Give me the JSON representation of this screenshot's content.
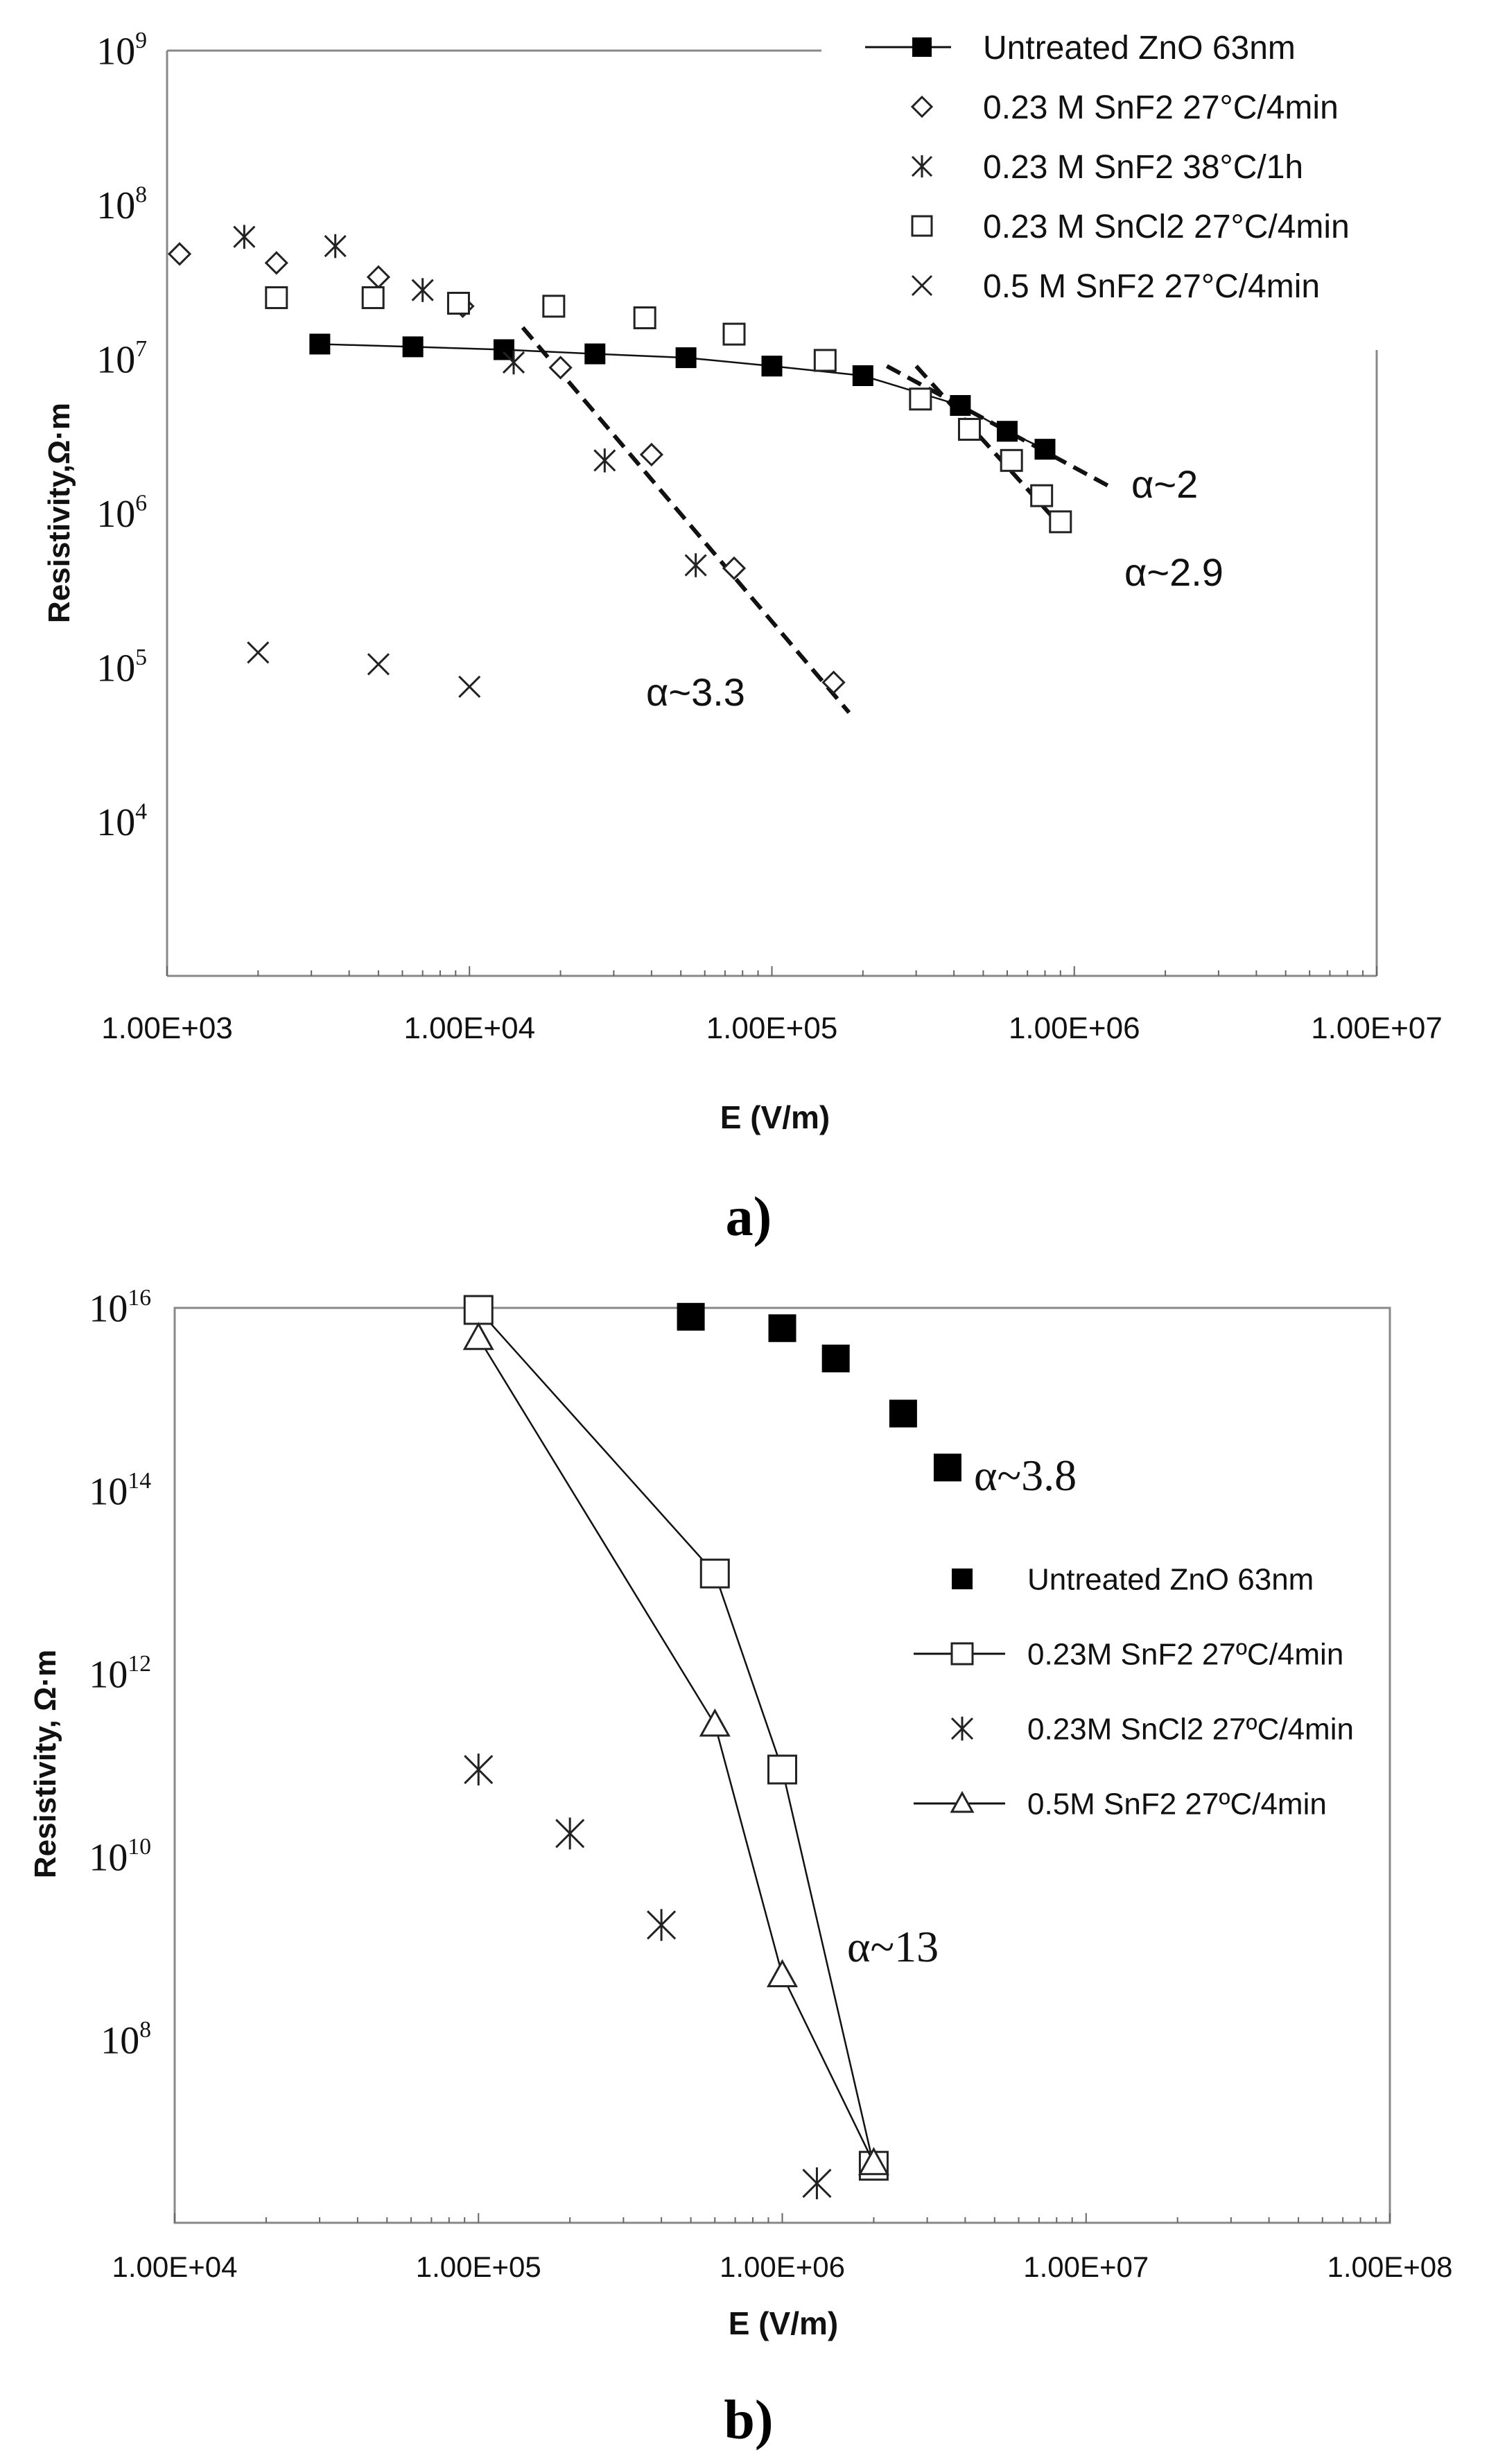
{
  "chart_data": [
    {
      "panel": "a)",
      "type": "scatter",
      "xscale": "log",
      "yscale": "log",
      "xlim": [
        1000,
        10000000
      ],
      "ylim": [
        1000,
        1000000000
      ],
      "xlabel": "E (V/m)",
      "ylabel": "Resistivity,Ω·m",
      "x_tick_labels": [
        "1.00E+03",
        "1.00E+04",
        "1.00E+05",
        "1.00E+06",
        "1.00E+07"
      ],
      "y_tick_bases": [
        "10",
        "10",
        "10",
        "10",
        "10",
        "10"
      ],
      "y_tick_exps": [
        "4",
        "5",
        "6",
        "7",
        "8",
        "9"
      ],
      "legend_placement": "top-right",
      "series": [
        {
          "name": "Untreated ZnO 63nm",
          "marker": "filled-square",
          "line": "solid",
          "x": [
            3200,
            6500,
            13000,
            26000,
            52000,
            100000,
            200000,
            420000,
            600000,
            800000
          ],
          "y": [
            12500000,
            12000000,
            11500000,
            10800000,
            10200000,
            9000000,
            7800000,
            5000000,
            3400000,
            2600000
          ]
        },
        {
          "name": "0.23 M SnF2 27°C/4min",
          "marker": "open-diamond",
          "line": "none",
          "x": [
            1100,
            2300,
            5000,
            9500,
            20000,
            40000,
            75000,
            160000
          ],
          "y": [
            48000000,
            42000000,
            34000000,
            22000000,
            8800000,
            2400000,
            440000,
            80000
          ]
        },
        {
          "name": "0.23 M SnF2 38°C/1h",
          "marker": "asterisk",
          "line": "none",
          "x": [
            1800,
            3600,
            7000,
            14000,
            28000,
            56000
          ],
          "y": [
            62000000,
            54000000,
            28000000,
            9500000,
            2200000,
            460000
          ]
        },
        {
          "name": "0.23 M SnCl2 27°C/4min",
          "marker": "open-square",
          "line": "none",
          "x": [
            2300,
            4800,
            9200,
            19000,
            38000,
            75000,
            150000,
            310000,
            450000,
            620000,
            780000,
            900000
          ],
          "y": [
            25000000,
            25000000,
            23000000,
            22000000,
            18500000,
            14500000,
            9800000,
            5500000,
            3500000,
            2200000,
            1300000,
            880000
          ]
        },
        {
          "name": "0.5 M SnF2 27°C/4min",
          "marker": "x-cross",
          "line": "none",
          "x": [
            2000,
            5000,
            10000
          ],
          "y": [
            125000,
            105000,
            75000
          ]
        }
      ],
      "fits": [
        {
          "label": "α~2",
          "x": [
            240000,
            1300000
          ],
          "y": [
            9000000,
            1500000
          ]
        },
        {
          "label": "α~2.9",
          "x": [
            300000,
            900000
          ],
          "y": [
            9000000,
            830000
          ]
        },
        {
          "label": "α~3.3",
          "x": [
            15000,
            180000
          ],
          "y": [
            16000000,
            51000
          ]
        }
      ]
    },
    {
      "panel": "b)",
      "type": "scatter",
      "xscale": "log",
      "yscale": "log",
      "xlim": [
        10000,
        100000000
      ],
      "ylim": [
        1000000,
        10000000000000000
      ],
      "xlabel": "E (V/m)",
      "ylabel": "Resistivity, Ω·m",
      "x_tick_labels": [
        "1.00E+04",
        "1.00E+05",
        "1.00E+06",
        "1.00E+07",
        "1.00E+08"
      ],
      "y_tick_bases": [
        "10",
        "10",
        "10",
        "10",
        "10"
      ],
      "y_tick_exps": [
        "8",
        "10",
        "12",
        "14",
        "16"
      ],
      "legend_placement": "right",
      "series": [
        {
          "name": "Untreated ZnO 63nm",
          "marker": "filled-square",
          "line": "none",
          "x": [
            500000,
            1000000,
            1500000,
            2500000,
            3500000
          ],
          "y": [
            8000000000000000,
            6000000000000000,
            2800000000000000,
            700000000000000,
            180000000000000
          ]
        },
        {
          "name": "0.23M SnF2 27ºC/4min",
          "marker": "open-square",
          "line": "solid",
          "x": [
            100000,
            600000,
            1000000,
            2000000
          ],
          "y": [
            9500000000000000,
            12500000000000,
            90000000000,
            4200000
          ]
        },
        {
          "name": "0.23M SnCl2 27ºC/4min",
          "marker": "asterisk",
          "line": "none",
          "x": [
            100000,
            200000,
            400000,
            1300000
          ],
          "y": [
            90000000000,
            18000000000,
            1800000000,
            2700000
          ]
        },
        {
          "name": "0.5M SnF2 27ºC/4min",
          "marker": "open-triangle",
          "line": "solid",
          "x": [
            100000,
            600000,
            1000000,
            2000000
          ],
          "y": [
            4700000000000000,
            280000000000,
            510000000,
            4500000
          ]
        }
      ],
      "annotations": [
        {
          "label": "α~3.8",
          "x": 4000000,
          "y": 150000000000000
        },
        {
          "label": "α~13",
          "x": 1380000,
          "y": 150000000
        }
      ]
    }
  ]
}
